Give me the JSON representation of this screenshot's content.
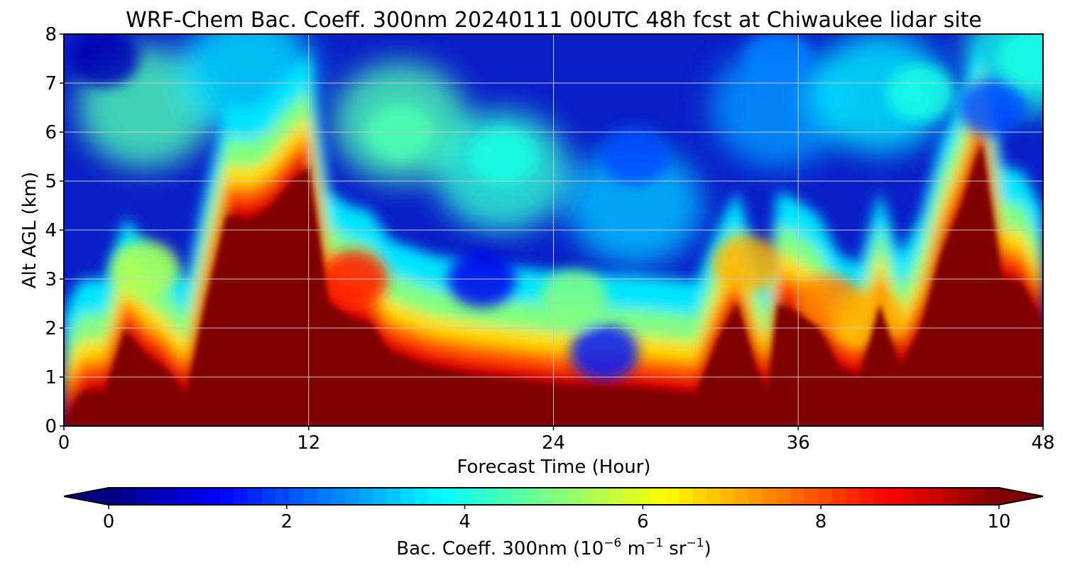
{
  "chart_data": {
    "type": "heatmap",
    "title": "WRF-Chem Bac. Coeff. 300nm  20240111 00UTC 48h fcst at Chiwaukee lidar site",
    "xlabel": "Forecast Time (Hour)",
    "ylabel": "Alt AGL (km)",
    "xlim": [
      0,
      48
    ],
    "ylim": [
      0,
      8
    ],
    "xticks": [
      0,
      12,
      24,
      36,
      48
    ],
    "yticks": [
      0,
      1,
      2,
      3,
      4,
      5,
      6,
      7,
      8
    ],
    "grid": true,
    "colormap": "jet",
    "colorbar": {
      "label_main": "Bac. Coeff. 300nm  (10",
      "label_exp1": "−6",
      "label_mid": " m",
      "label_exp2": "−1",
      "label_mid2": " sr",
      "label_exp3": "−1",
      "label_end": ")",
      "range": [
        0,
        10
      ],
      "ticks": [
        0,
        2,
        4,
        6,
        8,
        10
      ],
      "extend": "both",
      "orientation": "horizontal"
    },
    "saturated_region_top_km": {
      "x": [
        0,
        0.3,
        0.6,
        1,
        2,
        3,
        4,
        5,
        6,
        7,
        8,
        9,
        10,
        11,
        12,
        13,
        14,
        15,
        16,
        18,
        20,
        22,
        24,
        26,
        28,
        30,
        31,
        32,
        33,
        34,
        34.5,
        35,
        36,
        37,
        38,
        39,
        40,
        41,
        42,
        43,
        44,
        45,
        46,
        47,
        48
      ],
      "y": [
        0,
        0.3,
        0.55,
        0.7,
        0.7,
        1.95,
        1.45,
        1.15,
        0.65,
        2.6,
        4.3,
        4.2,
        4.4,
        4.9,
        5.3,
        2.5,
        2.2,
        2.1,
        1.5,
        1.2,
        1.05,
        0.95,
        0.85,
        0.8,
        0.78,
        0.7,
        0.65,
        1.7,
        2.5,
        1.1,
        0.75,
        2.5,
        2.3,
        2.0,
        1.2,
        1.0,
        2.5,
        1.2,
        2.0,
        3.5,
        4.5,
        5.8,
        3.0,
        2.9,
        2.1
      ]
    },
    "features": [
      {
        "x": 14.2,
        "y": 3.0,
        "value": 8.5
      },
      {
        "x": 4.0,
        "y": 3.2,
        "value": 5.5
      },
      {
        "x": 16.5,
        "y": 6.0,
        "value": 4.5
      },
      {
        "x": 20.5,
        "y": 3.0,
        "value": 1.0
      },
      {
        "x": 21.5,
        "y": 5.5,
        "value": 4.0
      },
      {
        "x": 25.0,
        "y": 2.6,
        "value": 5.0
      },
      {
        "x": 26.5,
        "y": 1.5,
        "value": 1.5
      },
      {
        "x": 28.0,
        "y": 5.5,
        "value": 2.0
      },
      {
        "x": 33.5,
        "y": 3.3,
        "value": 7.0
      },
      {
        "x": 37.5,
        "y": 2.5,
        "value": 7.5
      },
      {
        "x": 39.5,
        "y": 2.2,
        "value": 7.0
      },
      {
        "x": 42.0,
        "y": 6.8,
        "value": 4.0
      },
      {
        "x": 45.5,
        "y": 6.5,
        "value": 2.0
      },
      {
        "x": 47.5,
        "y": 7.5,
        "value": 4.0
      },
      {
        "x": 2.0,
        "y": 7.5,
        "value": 0.5
      },
      {
        "x": 35.0,
        "y": 7.5,
        "value": 2.5
      }
    ]
  },
  "colors": {
    "saturated": "#800000",
    "background_low": "#0a1fc8"
  }
}
